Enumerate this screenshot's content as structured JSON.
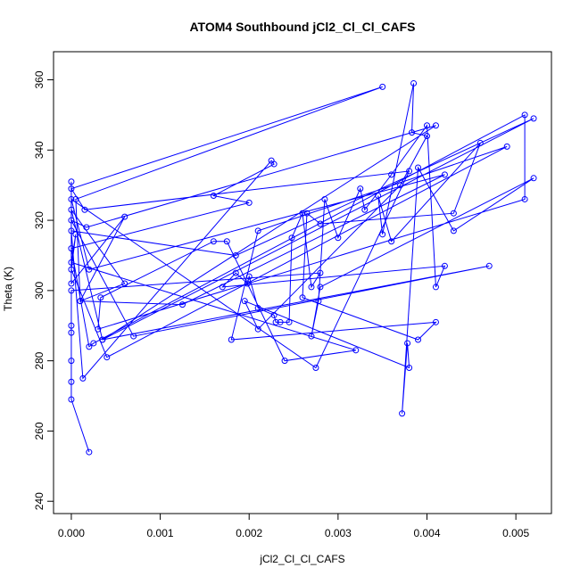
{
  "chart_data": {
    "type": "line-points",
    "title": "ATOM4 Southbound jCl2_Cl_Cl_CAFS",
    "x_label": "jCl2_Cl_Cl_CAFS",
    "y_label": "Theta (K)",
    "color": "#0000ff",
    "xlim": [
      -0.0002,
      0.0054
    ],
    "ylim": [
      236.5,
      368
    ],
    "xticks": [
      {
        "value": 0,
        "label": "0.000"
      },
      {
        "value": 0.001,
        "label": "0.001"
      },
      {
        "value": 0.002,
        "label": "0.002"
      },
      {
        "value": 0.003,
        "label": "0.003"
      },
      {
        "value": 0.004,
        "label": "0.004"
      },
      {
        "value": 0.005,
        "label": "0.005"
      }
    ],
    "yticks": [
      240,
      260,
      280,
      300,
      320,
      340,
      360
    ],
    "x": [
      0,
      0,
      0.0006,
      0.0001,
      5e-05,
      0.0035,
      0,
      0.00015,
      0.0038,
      0.00275,
      0,
      0.0002,
      0.0042,
      0.00125,
      0.0001,
      0.0006,
      0,
      0.00035,
      0.0047,
      0.0007,
      0,
      0.00017,
      0.0041,
      0.00035,
      0.0052,
      0.00185,
      0,
      0.00013,
      0.00225,
      0.00228,
      0.0016,
      0.002,
      0,
      0.0002,
      0.00025,
      0.0051,
      0.0051,
      0.0003,
      0.00033,
      0.0016,
      0.00175,
      0.0024,
      0.0032,
      0,
      5e-05,
      0,
      0.0004,
      0.0049,
      0.0021,
      0.0018,
      0.0041,
      0.0039,
      0.0026,
      0.00265,
      0.0028,
      0.0043,
      0.0046,
      0.0036,
      0.00345,
      0.0035,
      0.00385,
      0.00383,
      0.004,
      0.0037,
      0.0021,
      0.00195,
      0.0038,
      0.00378,
      0.00372,
      0.0039,
      0.0043,
      0.0052,
      0.0028,
      0.0027,
      0.00278,
      0.00285,
      0.003,
      0.00325,
      0.0033,
      0.0036,
      0.004,
      0.0041,
      0.0042,
      0.0017,
      0.00185,
      0.00198,
      0.002,
      0.0021,
      0.00228,
      0.0023,
      0.00235,
      0.00245,
      0.00248,
      0.0026,
      0.0027,
      0.0028,
      0,
      0,
      0,
      0,
      0,
      0,
      0.0002
    ],
    "values": [
      331,
      302,
      321,
      297,
      326,
      358,
      329,
      323,
      334,
      278,
      326,
      306,
      333,
      296,
      297,
      302,
      323,
      286,
      307,
      287,
      320,
      318,
      347,
      286,
      349,
      310,
      317,
      275,
      337,
      336,
      327,
      325,
      312,
      284,
      285,
      350,
      326,
      289,
      298,
      314,
      314,
      280,
      283,
      308,
      316,
      306,
      281,
      341,
      317,
      286,
      291,
      286,
      298,
      322,
      319,
      322,
      342,
      314,
      327,
      316,
      359,
      345,
      344,
      330,
      289,
      297,
      278,
      285,
      265,
      335,
      317,
      332,
      301,
      287,
      297,
      326,
      315,
      329,
      323,
      333,
      347,
      301,
      307,
      301,
      305,
      302,
      304,
      295,
      293,
      291,
      291,
      291,
      315,
      322,
      301,
      305,
      300,
      290,
      288,
      280,
      274,
      269,
      254
    ]
  }
}
